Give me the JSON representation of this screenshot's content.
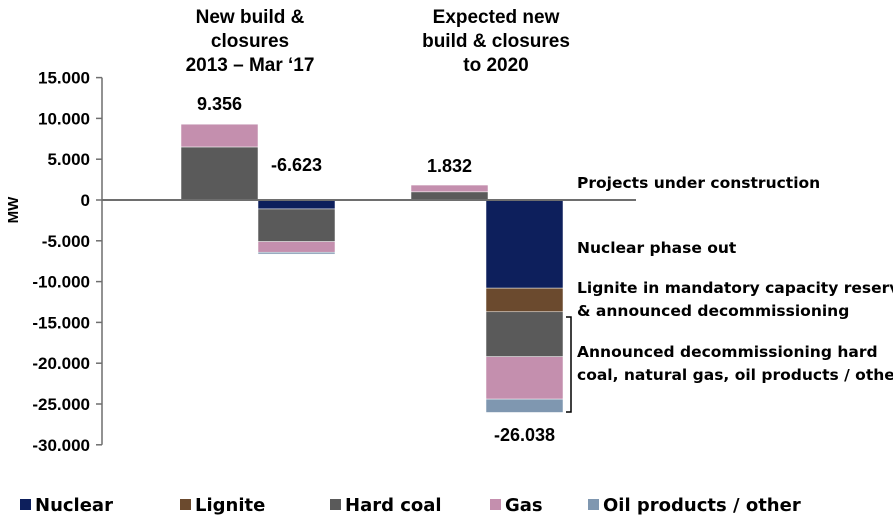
{
  "chart_data": {
    "type": "bar",
    "stacked": true,
    "ylabel": "MW",
    "ylim": [
      -30000,
      15000
    ],
    "yticks": [
      "15.000",
      "10.000",
      "5.000",
      "0",
      "-5.000",
      "-10.000",
      "-15.000",
      "-20.000",
      "-25.000",
      "-30.000"
    ],
    "ytick_values": [
      15000,
      10000,
      5000,
      0,
      -5000,
      -10000,
      -15000,
      -20000,
      -25000,
      -30000
    ],
    "group_headers": [
      [
        "New build &",
        "closures",
        "2013 – Mar ‘17"
      ],
      [
        "Expected new",
        "build & closures",
        "to 2020"
      ]
    ],
    "series": [
      {
        "name": "Nuclear",
        "color": "#0d1f5c",
        "values": [
          0,
          -1100,
          0,
          -10800
        ]
      },
      {
        "name": "Lignite",
        "color": "#6b4a2e",
        "values": [
          0,
          0,
          0,
          -2900
        ]
      },
      {
        "name": "Hard coal",
        "color": "#5a5a5a",
        "values": [
          6500,
          -4000,
          1000,
          -5500
        ]
      },
      {
        "name": "Gas",
        "color": "#c48fae",
        "values": [
          2800,
          -1300,
          832,
          -5200
        ]
      },
      {
        "name": "Oil products / other",
        "color": "#7f97b0",
        "values": [
          56,
          -223,
          0,
          -1638
        ]
      }
    ],
    "totals": [
      {
        "label": "9.356",
        "value": 9356
      },
      {
        "label": "-6.623",
        "value": -6623
      },
      {
        "label": "1.832",
        "value": 1832
      },
      {
        "label": "-26.038",
        "value": -26038
      }
    ],
    "annotations": {
      "construction": "Projects under construction",
      "nuclear": "Nuclear phase out",
      "lignite": [
        "Lignite in mandatory capacity reserve",
        "& announced decommissioning"
      ],
      "hardcoal": [
        "Announced decommissioning hard",
        "coal, natural gas, oil products / other"
      ]
    },
    "legend_position": "bottom",
    "grid": false
  }
}
